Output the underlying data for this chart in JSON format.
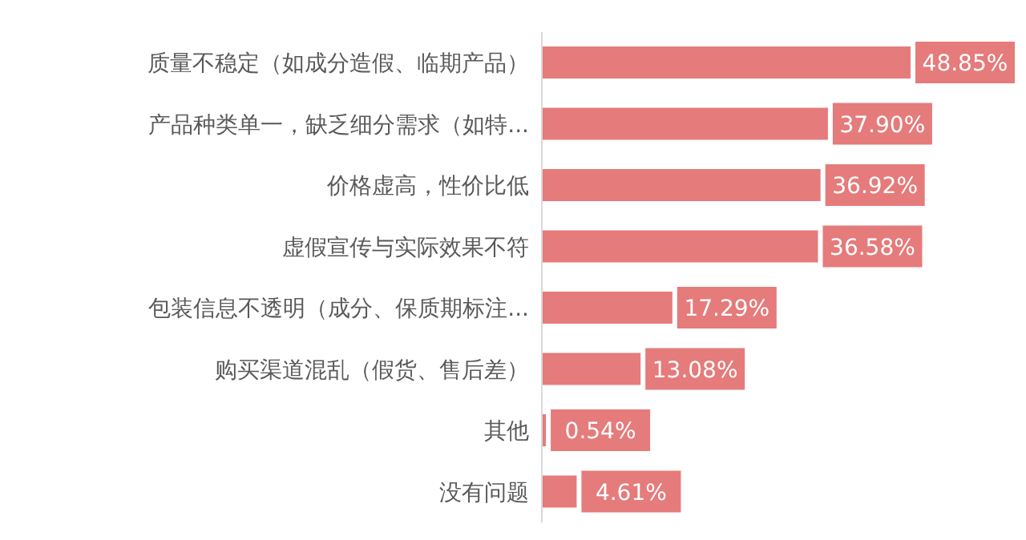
{
  "chart_data": {
    "type": "bar",
    "orientation": "horizontal",
    "categories": [
      "质量不稳定（如成分造假、临期产品）",
      "产品种类单一，缺乏细分需求（如特...",
      "价格虚高，性价比低",
      "虚假宣传与实际效果不符",
      "包装信息不透明（成分、保质期标注...",
      "购买渠道混乱（假货、售后差）",
      "其他",
      "没有问题"
    ],
    "values": [
      48.85,
      37.9,
      36.92,
      36.58,
      17.29,
      13.08,
      0.54,
      4.61
    ],
    "value_labels": [
      "48.85%",
      "37.90%",
      "36.92%",
      "36.58%",
      "17.29%",
      "13.08%",
      "0.54%",
      "4.61%"
    ],
    "color": "#e57b7b",
    "grid": false,
    "legend": false
  }
}
